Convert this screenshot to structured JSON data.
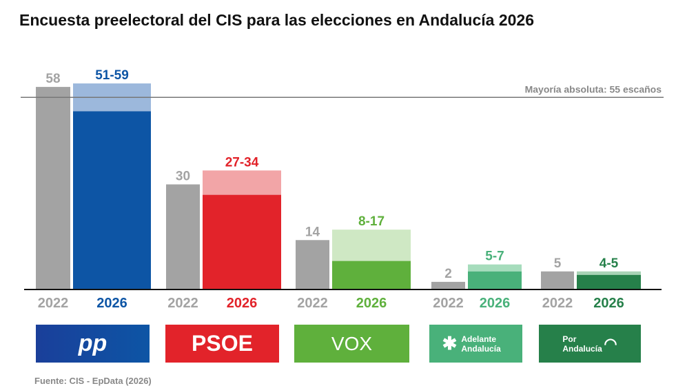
{
  "chart_data": {
    "type": "bar",
    "title": "Encuesta preelectoral del CIS para las elecciones en Andalucía 2026",
    "categories": [
      "PP",
      "PSOE",
      "VOX",
      "Adelante Andalucía",
      "Por Andalucía"
    ],
    "year_labels": [
      "2022",
      "2026"
    ],
    "series": [
      {
        "name": "2022",
        "values": [
          58,
          30,
          14,
          2,
          5
        ],
        "labels": [
          "58",
          "30",
          "14",
          "2",
          "5"
        ],
        "color": "#a3a3a3"
      },
      {
        "name": "2026",
        "ranges": [
          [
            51,
            59
          ],
          [
            27,
            34
          ],
          [
            8,
            17
          ],
          [
            5,
            7
          ],
          [
            4,
            5
          ]
        ],
        "labels": [
          "51-59",
          "27-34",
          "8-17",
          "5-7",
          "4-5"
        ]
      }
    ],
    "party_colors": [
      "#0d55a5",
      "#e2232a",
      "#5fb03c",
      "#49b17a",
      "#26804a"
    ],
    "party_colors_light": [
      "#9cb8dc",
      "#f2a5a7",
      "#cfe8c4",
      "#a6dcbc",
      "#a9d3b6"
    ],
    "label_colors": [
      "#0d55a5",
      "#e2232a",
      "#5fb03c",
      "#49b17a",
      "#26804a"
    ],
    "reference_line": {
      "value": 55,
      "label": "Mayoría absoluta: 55 escaños"
    },
    "ylim": [
      0,
      60
    ],
    "grid": false,
    "legend": "none"
  },
  "logos": [
    "pp",
    "PSOE",
    "VOX",
    "Adelante Andalucía",
    "Por Andalucía"
  ],
  "source": "Fuente: CIS - EpData (2026)"
}
